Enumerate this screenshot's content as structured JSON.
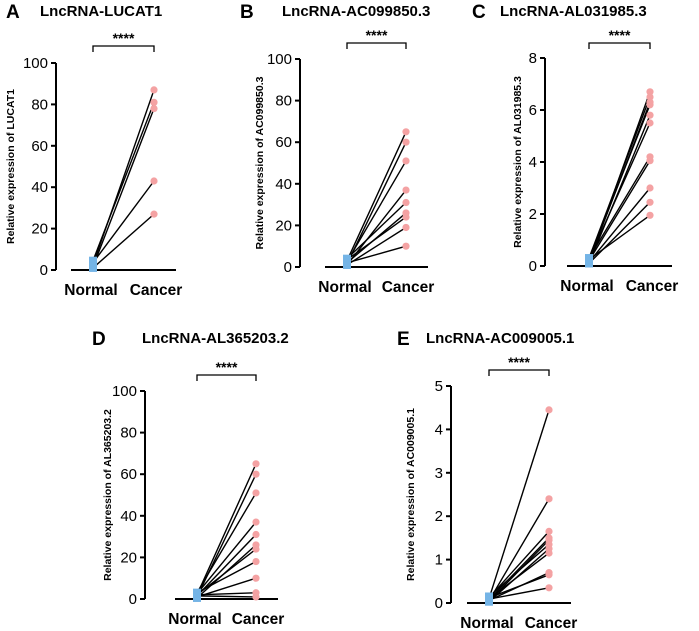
{
  "figure": {
    "panels": [
      {
        "letter": "A",
        "title": "LncRNA-LUCAT1"
      },
      {
        "letter": "B",
        "title": "LncRNA-AC099850.3"
      },
      {
        "letter": "C",
        "title": "LncRNA-AL031985.3"
      },
      {
        "letter": "D",
        "title": "LncRNA-AL365203.2"
      },
      {
        "letter": "E",
        "title": "LncRNA-AC009005.1"
      }
    ]
  },
  "chart_data": [
    {
      "type": "paired-scatter",
      "panel": "A",
      "title": "LncRNA-LUCAT1",
      "xlabel": "",
      "ylabel": "Relative expression of LUCAT1",
      "categories": [
        "Normal",
        "Cancer"
      ],
      "ylim": [
        0,
        100
      ],
      "yticks": [
        0,
        20,
        40,
        60,
        80,
        100
      ],
      "significance": "****",
      "normal": [
        2.5,
        4.5,
        1.5,
        3.5,
        1.0
      ],
      "cancer": [
        87.0,
        81.0,
        78.0,
        43.0,
        27.0
      ],
      "colors": {
        "normal": "#74b4e6",
        "cancer": "#f4a2a3",
        "line": "#000000"
      }
    },
    {
      "type": "paired-scatter",
      "panel": "B",
      "title": "LncRNA-AC099850.3",
      "xlabel": "",
      "ylabel": "Relative expression of AC099850.3",
      "categories": [
        "Normal",
        "Cancer"
      ],
      "ylim": [
        0,
        100
      ],
      "yticks": [
        0,
        20,
        40,
        60,
        80,
        100
      ],
      "significance": "****",
      "normal": [
        3.0,
        1.5,
        2.5,
        1.0,
        4.0,
        2.0,
        3.5,
        1.0,
        2.0
      ],
      "cancer": [
        65.0,
        60.0,
        51.0,
        37.0,
        31.0,
        26.0,
        24.0,
        19.0,
        10.0
      ],
      "colors": {
        "normal": "#74b4e6",
        "cancer": "#f4a2a3",
        "line": "#000000"
      }
    },
    {
      "type": "paired-scatter",
      "panel": "C",
      "title": "LncRNA-AL031985.3",
      "xlabel": "",
      "ylabel": "Relative expression of AL031985.3",
      "categories": [
        "Normal",
        "Cancer"
      ],
      "ylim": [
        0,
        8
      ],
      "yticks": [
        0,
        2,
        4,
        6,
        8
      ],
      "significance": "****",
      "normal": [
        0.15,
        0.3,
        0.2,
        0.1,
        0.25,
        0.3,
        0.2,
        0.15,
        0.1,
        0.25,
        0.3
      ],
      "cancer": [
        6.7,
        6.5,
        6.3,
        5.8,
        5.5,
        4.2,
        4.05,
        3.0,
        2.45,
        1.95,
        6.2
      ],
      "colors": {
        "normal": "#74b4e6",
        "cancer": "#f4a2a3",
        "line": "#000000"
      }
    },
    {
      "type": "paired-scatter",
      "panel": "D",
      "title": "LncRNA-AL365203.2",
      "xlabel": "",
      "ylabel": "Relative expression of AL365203.2",
      "categories": [
        "Normal",
        "Cancer"
      ],
      "ylim": [
        0,
        100
      ],
      "yticks": [
        0,
        20,
        40,
        60,
        80,
        100
      ],
      "significance": "****",
      "normal": [
        2.0,
        1.0,
        3.0,
        2.5,
        1.5,
        0.5,
        2.0,
        3.0,
        1.0,
        2.0,
        1.5
      ],
      "cancer": [
        65.0,
        60.0,
        51.0,
        37.0,
        31.0,
        26.0,
        24.0,
        18.0,
        10.0,
        3.0,
        1.0
      ],
      "colors": {
        "normal": "#74b4e6",
        "cancer": "#f4a2a3",
        "line": "#000000"
      }
    },
    {
      "type": "paired-scatter",
      "panel": "E",
      "title": "LncRNA-AC009005.1",
      "xlabel": "",
      "ylabel": "Relative expression of AC009005.1",
      "categories": [
        "Normal",
        "Cancer"
      ],
      "ylim": [
        0,
        5
      ],
      "yticks": [
        0,
        1,
        2,
        3,
        4,
        5
      ],
      "significance": "****",
      "normal": [
        0.1,
        0.05,
        0.12,
        0.08,
        0.15,
        0.03,
        0.1,
        0.06,
        0.12,
        0.09,
        0.04
      ],
      "cancer": [
        4.45,
        2.4,
        1.65,
        1.5,
        1.35,
        1.25,
        1.15,
        0.7,
        0.65,
        0.35,
        1.45
      ],
      "colors": {
        "normal": "#74b4e6",
        "cancer": "#f4a2a3",
        "line": "#000000"
      }
    }
  ]
}
